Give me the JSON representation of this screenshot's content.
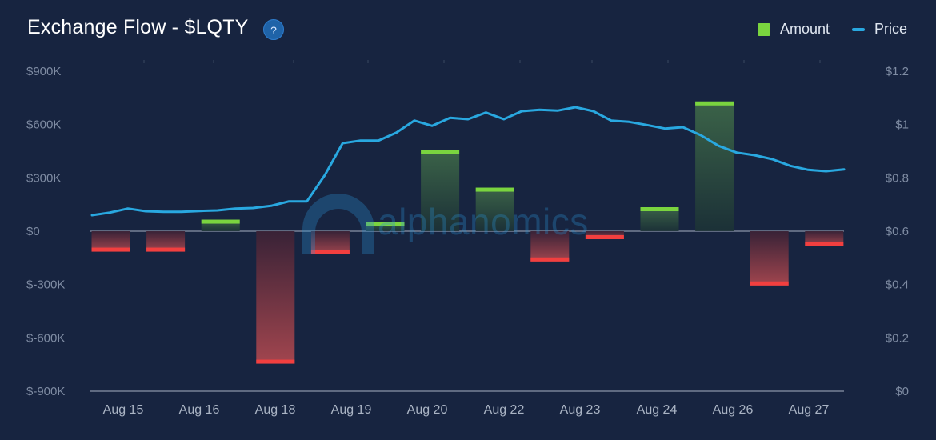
{
  "title": "Exchange Flow - $LQTY",
  "help_glyph": "?",
  "legend": {
    "amount": "Amount",
    "price": "Price"
  },
  "colors": {
    "background": "#172440",
    "inflow": "#7ad43f",
    "outflow": "#f23f3f",
    "price": "#29a8e0"
  },
  "watermark": "alphanomics",
  "chart_data": {
    "type": "bar",
    "y_left_ticks": [
      "$900K",
      "$600K",
      "$300K",
      "$0",
      "$-300K",
      "$-600K",
      "$-900K"
    ],
    "y_right_ticks": [
      "$1.2",
      "$1",
      "$0.8",
      "$0.6",
      "$0.4",
      "$0.2",
      "$0"
    ],
    "x_tick_labels": [
      "Aug 15",
      "Aug 16",
      "Aug 18",
      "Aug 19",
      "Aug 20",
      "Aug 22",
      "Aug 23",
      "Aug 24",
      "Aug 26",
      "Aug 27"
    ],
    "ylim_left": [
      -900000,
      900000
    ],
    "ylim_right": [
      0,
      1.2
    ],
    "series": [
      {
        "name": "Amount",
        "values": [
          -115000,
          -115000,
          65000,
          -745000,
          -130000,
          50000,
          455000,
          245000,
          -170000,
          -45000,
          135000,
          730000,
          -305000,
          -85000
        ]
      },
      {
        "name": "Price",
        "values": [
          0.66,
          0.67,
          0.685,
          0.675,
          0.673,
          0.673,
          0.676,
          0.678,
          0.685,
          0.687,
          0.695,
          0.712,
          0.712,
          0.81,
          0.93,
          0.94,
          0.94,
          0.97,
          1.015,
          0.995,
          1.025,
          1.02,
          1.045,
          1.02,
          1.05,
          1.055,
          1.052,
          1.065,
          1.05,
          1.015,
          1.01,
          0.998,
          0.985,
          0.99,
          0.96,
          0.92,
          0.895,
          0.885,
          0.87,
          0.845,
          0.83,
          0.825,
          0.832
        ]
      }
    ],
    "grid": "zero line only",
    "legend_position": "top-right"
  }
}
